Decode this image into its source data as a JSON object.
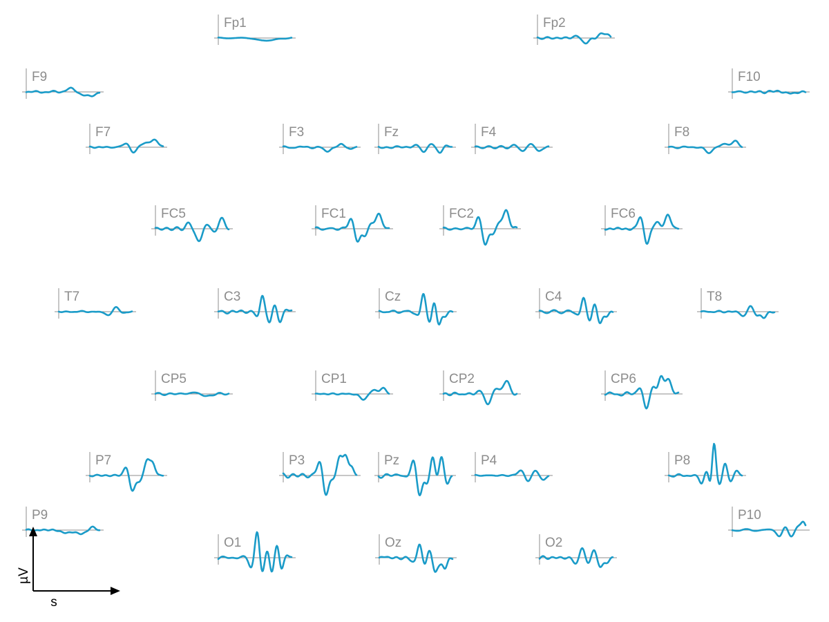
{
  "chart_data": {
    "type": "line",
    "layout": "topographic-eeg",
    "line_color": "#1a9bc8",
    "axis_color": "#8c8c8c",
    "scale_bar": {
      "x_label": "s",
      "y_label": "µV"
    },
    "channels": [
      {
        "name": "Fp1",
        "amplitude": 0.12,
        "features": [
          [
            0.6,
            -0.15,
            0.08
          ],
          [
            0.75,
            -0.1,
            0.08
          ]
        ]
      },
      {
        "name": "Fp2",
        "amplitude": 0.15,
        "features": [
          [
            0.55,
            0.2,
            0.05
          ],
          [
            0.62,
            -0.25,
            0.05
          ],
          [
            0.68,
            -0.15,
            0.05
          ],
          [
            0.9,
            0.35,
            0.05
          ]
        ]
      },
      {
        "name": "F9",
        "amplitude": 0.12,
        "features": [
          [
            0.6,
            0.2,
            0.06
          ],
          [
            0.78,
            -0.15,
            0.05
          ],
          [
            0.88,
            -0.3,
            0.05
          ]
        ]
      },
      {
        "name": "F10",
        "amplitude": 0.12,
        "features": [
          [
            0.6,
            0.05,
            0.05
          ],
          [
            0.8,
            -0.12,
            0.05
          ]
        ]
      },
      {
        "name": "F7",
        "amplitude": 0.12,
        "features": [
          [
            0.5,
            0.35,
            0.04
          ],
          [
            0.58,
            -0.4,
            0.04
          ],
          [
            0.75,
            0.25,
            0.05
          ],
          [
            0.88,
            0.5,
            0.05
          ]
        ]
      },
      {
        "name": "F3",
        "amplitude": 0.14,
        "features": [
          [
            0.6,
            -0.3,
            0.04
          ],
          [
            0.8,
            0.2,
            0.04
          ],
          [
            0.92,
            -0.15,
            0.03
          ]
        ]
      },
      {
        "name": "Fz",
        "amplitude": 0.14,
        "features": [
          [
            0.5,
            0.15,
            0.04
          ],
          [
            0.62,
            -0.35,
            0.035
          ],
          [
            0.72,
            0.25,
            0.035
          ],
          [
            0.84,
            -0.35,
            0.035
          ],
          [
            0.92,
            0.1,
            0.03
          ]
        ]
      },
      {
        "name": "F4",
        "amplitude": 0.14,
        "features": [
          [
            0.55,
            0.1,
            0.04
          ],
          [
            0.66,
            -0.3,
            0.035
          ],
          [
            0.76,
            0.3,
            0.035
          ],
          [
            0.86,
            -0.3,
            0.035
          ]
        ]
      },
      {
        "name": "F8",
        "amplitude": 0.12,
        "features": [
          [
            0.55,
            -0.35,
            0.05
          ],
          [
            0.78,
            0.25,
            0.06
          ],
          [
            0.92,
            0.35,
            0.04
          ]
        ]
      },
      {
        "name": "FC5",
        "amplitude": 0.18,
        "features": [
          [
            0.45,
            0.3,
            0.04
          ],
          [
            0.6,
            -0.9,
            0.04
          ],
          [
            0.7,
            0.4,
            0.04
          ],
          [
            0.8,
            -0.3,
            0.04
          ],
          [
            0.9,
            0.7,
            0.04
          ]
        ]
      },
      {
        "name": "FC1",
        "amplitude": 0.2,
        "features": [
          [
            0.48,
            0.7,
            0.035
          ],
          [
            0.57,
            -0.85,
            0.035
          ],
          [
            0.67,
            -0.5,
            0.035
          ],
          [
            0.75,
            0.3,
            0.04
          ],
          [
            0.86,
            1.0,
            0.04
          ]
        ]
      },
      {
        "name": "FC2",
        "amplitude": 0.2,
        "features": [
          [
            0.48,
            0.8,
            0.035
          ],
          [
            0.57,
            -1.1,
            0.035
          ],
          [
            0.68,
            -0.4,
            0.035
          ],
          [
            0.77,
            0.5,
            0.04
          ],
          [
            0.86,
            1.1,
            0.04
          ]
        ]
      },
      {
        "name": "FC6",
        "amplitude": 0.2,
        "features": [
          [
            0.48,
            0.75,
            0.035
          ],
          [
            0.57,
            -0.95,
            0.035
          ],
          [
            0.7,
            0.4,
            0.04
          ],
          [
            0.86,
            0.95,
            0.04
          ]
        ]
      },
      {
        "name": "T7",
        "amplitude": 0.12,
        "features": [
          [
            0.68,
            -0.3,
            0.04
          ],
          [
            0.78,
            0.35,
            0.04
          ],
          [
            0.88,
            -0.1,
            0.04
          ]
        ]
      },
      {
        "name": "C3",
        "amplitude": 0.2,
        "features": [
          [
            0.55,
            -0.4,
            0.035
          ],
          [
            0.6,
            1.2,
            0.03
          ],
          [
            0.7,
            -0.8,
            0.03
          ],
          [
            0.77,
            0.5,
            0.03
          ],
          [
            0.84,
            -0.7,
            0.03
          ],
          [
            0.92,
            0.2,
            0.03
          ]
        ]
      },
      {
        "name": "Cz",
        "amplitude": 0.2,
        "features": [
          [
            0.55,
            -0.4,
            0.035
          ],
          [
            0.6,
            1.3,
            0.03
          ],
          [
            0.69,
            -0.7,
            0.03
          ],
          [
            0.75,
            0.7,
            0.03
          ],
          [
            0.81,
            -0.9,
            0.03
          ],
          [
            0.9,
            -0.3,
            0.03
          ]
        ]
      },
      {
        "name": "C4",
        "amplitude": 0.2,
        "features": [
          [
            0.55,
            -0.3,
            0.035
          ],
          [
            0.6,
            1.0,
            0.03
          ],
          [
            0.69,
            -0.6,
            0.03
          ],
          [
            0.75,
            0.5,
            0.03
          ],
          [
            0.82,
            -0.7,
            0.03
          ],
          [
            0.92,
            -0.4,
            0.03
          ]
        ]
      },
      {
        "name": "T8",
        "amplitude": 0.12,
        "features": [
          [
            0.58,
            -0.3,
            0.04
          ],
          [
            0.67,
            0.4,
            0.035
          ],
          [
            0.76,
            -0.25,
            0.035
          ],
          [
            0.86,
            -0.4,
            0.035
          ]
        ]
      },
      {
        "name": "CP5",
        "amplitude": 0.1,
        "features": [
          [
            0.5,
            0.1,
            0.05
          ],
          [
            0.7,
            -0.15,
            0.05
          ]
        ]
      },
      {
        "name": "CP1",
        "amplitude": 0.12,
        "features": [
          [
            0.65,
            -0.35,
            0.05
          ],
          [
            0.8,
            0.25,
            0.05
          ],
          [
            0.92,
            0.35,
            0.04
          ]
        ]
      },
      {
        "name": "CP2",
        "amplitude": 0.18,
        "features": [
          [
            0.52,
            0.3,
            0.04
          ],
          [
            0.6,
            -0.8,
            0.04
          ],
          [
            0.72,
            0.4,
            0.04
          ],
          [
            0.86,
            0.9,
            0.04
          ]
        ]
      },
      {
        "name": "CP6",
        "amplitude": 0.2,
        "features": [
          [
            0.48,
            0.5,
            0.035
          ],
          [
            0.56,
            -1.0,
            0.035
          ],
          [
            0.66,
            0.4,
            0.035
          ],
          [
            0.76,
            1.1,
            0.035
          ],
          [
            0.86,
            1.0,
            0.04
          ]
        ]
      },
      {
        "name": "P7",
        "amplitude": 0.2,
        "features": [
          [
            0.5,
            0.6,
            0.035
          ],
          [
            0.58,
            -1.1,
            0.035
          ],
          [
            0.68,
            -0.4,
            0.035
          ],
          [
            0.78,
            1.0,
            0.035
          ],
          [
            0.86,
            0.8,
            0.035
          ]
        ]
      },
      {
        "name": "P3",
        "amplitude": 0.22,
        "features": [
          [
            0.5,
            1.0,
            0.035
          ],
          [
            0.58,
            -1.3,
            0.035
          ],
          [
            0.68,
            -0.3,
            0.035
          ],
          [
            0.77,
            1.2,
            0.035
          ],
          [
            0.85,
            1.3,
            0.035
          ],
          [
            0.94,
            0.5,
            0.03
          ]
        ]
      },
      {
        "name": "Pz",
        "amplitude": 0.22,
        "features": [
          [
            0.48,
            1.0,
            0.035
          ],
          [
            0.56,
            -1.4,
            0.035
          ],
          [
            0.66,
            -0.5,
            0.03
          ],
          [
            0.74,
            1.3,
            0.03
          ],
          [
            0.8,
            -0.3,
            0.03
          ],
          [
            0.86,
            1.2,
            0.03
          ],
          [
            0.94,
            -0.6,
            0.03
          ]
        ]
      },
      {
        "name": "P4",
        "amplitude": 0.12,
        "features": [
          [
            0.62,
            0.35,
            0.04
          ],
          [
            0.72,
            -0.4,
            0.035
          ],
          [
            0.82,
            0.35,
            0.035
          ],
          [
            0.92,
            -0.3,
            0.035
          ]
        ]
      },
      {
        "name": "P8",
        "amplitude": 0.28,
        "features": [
          [
            0.45,
            -0.6,
            0.03
          ],
          [
            0.52,
            0.5,
            0.03
          ],
          [
            0.57,
            -0.8,
            0.025
          ],
          [
            0.62,
            2.2,
            0.025
          ],
          [
            0.7,
            -0.7,
            0.03
          ],
          [
            0.77,
            1.0,
            0.03
          ],
          [
            0.84,
            -0.6,
            0.03
          ],
          [
            0.92,
            0.4,
            0.03
          ]
        ]
      },
      {
        "name": "P9",
        "amplitude": 0.12,
        "features": [
          [
            0.55,
            -0.25,
            0.05
          ],
          [
            0.75,
            -0.3,
            0.05
          ],
          [
            0.9,
            0.2,
            0.04
          ]
        ]
      },
      {
        "name": "P10",
        "amplitude": 0.15,
        "features": [
          [
            0.65,
            -0.4,
            0.04
          ],
          [
            0.72,
            0.3,
            0.04
          ],
          [
            0.8,
            -0.5,
            0.04
          ],
          [
            0.9,
            0.3,
            0.04
          ],
          [
            0.97,
            0.5,
            0.03
          ]
        ]
      },
      {
        "name": "O1",
        "amplitude": 0.28,
        "features": [
          [
            0.45,
            -0.5,
            0.03
          ],
          [
            0.53,
            1.6,
            0.028
          ],
          [
            0.6,
            -1.0,
            0.028
          ],
          [
            0.67,
            0.6,
            0.028
          ],
          [
            0.73,
            -0.9,
            0.028
          ],
          [
            0.8,
            0.8,
            0.028
          ],
          [
            0.86,
            -0.9,
            0.028
          ],
          [
            0.93,
            0.3,
            0.03
          ]
        ]
      },
      {
        "name": "Oz",
        "amplitude": 0.22,
        "features": [
          [
            0.48,
            -0.4,
            0.035
          ],
          [
            0.55,
            1.0,
            0.03
          ],
          [
            0.62,
            -0.5,
            0.03
          ],
          [
            0.68,
            0.6,
            0.03
          ],
          [
            0.76,
            -0.9,
            0.03
          ],
          [
            0.82,
            -0.5,
            0.03
          ],
          [
            0.9,
            -0.6,
            0.03
          ]
        ]
      },
      {
        "name": "O2",
        "amplitude": 0.16,
        "features": [
          [
            0.5,
            -0.4,
            0.04
          ],
          [
            0.58,
            0.7,
            0.035
          ],
          [
            0.66,
            -0.4,
            0.035
          ],
          [
            0.74,
            0.5,
            0.035
          ],
          [
            0.83,
            -0.6,
            0.035
          ],
          [
            0.92,
            -0.3,
            0.035
          ]
        ]
      }
    ]
  }
}
